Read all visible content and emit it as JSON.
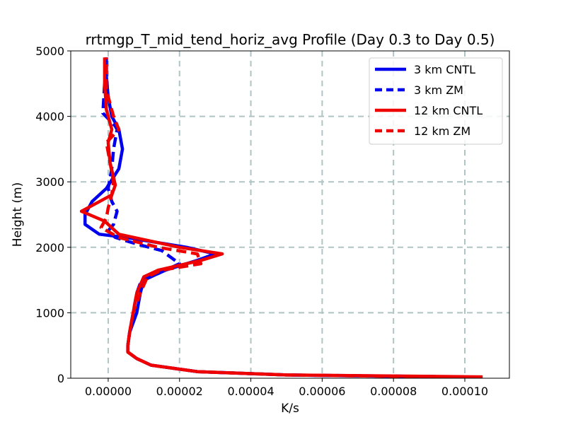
{
  "colors": {
    "cntl_3km": "#0000ee",
    "zm_3km": "#0000ee",
    "cntl_12km": "#ee0000",
    "zm_12km": "#ee0000",
    "grid": "#b0c4c4"
  },
  "chart_data": {
    "type": "line",
    "title": "rrtmgp_T_mid_tend_horiz_avg Profile (Day 0.3 to Day 0.5)",
    "xlabel": "K/s",
    "ylabel": "Height (m)",
    "xlim": [
      -1.05e-05,
      0.0001125
    ],
    "ylim": [
      0,
      5000
    ],
    "xticks": [
      0.0,
      2e-05,
      4e-05,
      6e-05,
      8e-05,
      0.0001
    ],
    "xtick_labels": [
      "0.00000",
      "0.00002",
      "0.00004",
      "0.00006",
      "0.00008",
      "0.00010"
    ],
    "yticks": [
      0,
      1000,
      2000,
      3000,
      4000,
      5000
    ],
    "ytick_labels": [
      "0",
      "1000",
      "2000",
      "3000",
      "4000",
      "5000"
    ],
    "grid": true,
    "legend_position": "top-right",
    "series": [
      {
        "name": "3 km CNTL",
        "color": "#0000ee",
        "style": "solid",
        "x": [
          9.3e-05,
          5e-05,
          2.5e-05,
          1.2e-05,
          8e-06,
          5.5e-06,
          5.5e-06,
          6e-06,
          8e-06,
          9e-06,
          1e-05,
          1.2e-05,
          1.6e-05,
          2.5e-05,
          3e-05,
          2.2e-05,
          5e-06,
          -2.5e-06,
          -6.5e-06,
          -6.5e-06,
          -4.5e-06,
          -5e-07,
          3e-06,
          4e-06,
          3e-06,
          1e-06,
          0.0,
          -5e-07,
          -5e-07
        ],
        "y": [
          20,
          50,
          100,
          200,
          300,
          400,
          500,
          700,
          1000,
          1300,
          1500,
          1550,
          1650,
          1800,
          1900,
          2000,
          2150,
          2200,
          2350,
          2500,
          2700,
          2900,
          3200,
          3500,
          3800,
          4000,
          4300,
          4600,
          4900
        ]
      },
      {
        "name": "3 km ZM",
        "color": "#0000ee",
        "style": "dashed",
        "x": [
          0.0001,
          5e-05,
          2.5e-05,
          1.2e-05,
          8e-06,
          5.5e-06,
          5.5e-06,
          6e-06,
          7e-06,
          8e-06,
          9e-06,
          1e-05,
          1.2e-05,
          2e-05,
          1.5e-05,
          8e-06,
          2e-06,
          0.0,
          1.5e-06,
          2.5e-06,
          1e-06,
          0.0,
          1e-06,
          1.5e-06,
          2.5e-06,
          2e-06,
          -1.5e-06,
          -1e-06,
          -5e-07
        ],
        "y": [
          20,
          50,
          100,
          200,
          300,
          400,
          500,
          700,
          1000,
          1300,
          1450,
          1500,
          1550,
          1750,
          1950,
          2050,
          2150,
          2250,
          2350,
          2550,
          2700,
          2900,
          3200,
          3500,
          3800,
          3850,
          4050,
          4500,
          4900
        ]
      },
      {
        "name": "12 km CNTL",
        "color": "#ee0000",
        "style": "solid",
        "x": [
          0.000105,
          5e-05,
          2.5e-05,
          1.2e-05,
          8e-06,
          5.5e-06,
          5.5e-06,
          6e-06,
          7e-06,
          8e-06,
          1e-05,
          1.4e-05,
          2.6e-05,
          3.2e-05,
          2e-05,
          3e-06,
          -1e-06,
          -7.5e-06,
          1e-06,
          2e-06,
          5e-07,
          0.0,
          1e-06,
          -5e-07,
          -1e-06,
          -1e-06
        ],
        "y": [
          20,
          50,
          100,
          200,
          300,
          400,
          500,
          700,
          1000,
          1300,
          1550,
          1650,
          1800,
          1900,
          2000,
          2200,
          2400,
          2550,
          2800,
          2950,
          3300,
          3600,
          3800,
          4100,
          4500,
          4900
        ]
      },
      {
        "name": "12 km ZM",
        "color": "#ee0000",
        "style": "dashed",
        "x": [
          9.4e-05,
          5e-05,
          2.5e-05,
          1.2e-05,
          8e-06,
          5.5e-06,
          5.5e-06,
          6e-06,
          7e-06,
          9e-06,
          1.1e-05,
          1.5e-05,
          2.6e-05,
          2.5e-05,
          1.4e-05,
          3e-06,
          -2e-06,
          -5e-07,
          0.0,
          1e-06,
          1.5e-06,
          5e-07,
          -5e-07,
          3e-06,
          1.5e-06,
          -5e-07,
          -5e-07
        ],
        "y": [
          20,
          50,
          100,
          200,
          300,
          400,
          500,
          700,
          1000,
          1300,
          1550,
          1650,
          1750,
          1900,
          2000,
          2150,
          2300,
          2450,
          2600,
          2800,
          3000,
          3300,
          3600,
          3800,
          4000,
          4400,
          4900
        ]
      }
    ]
  }
}
